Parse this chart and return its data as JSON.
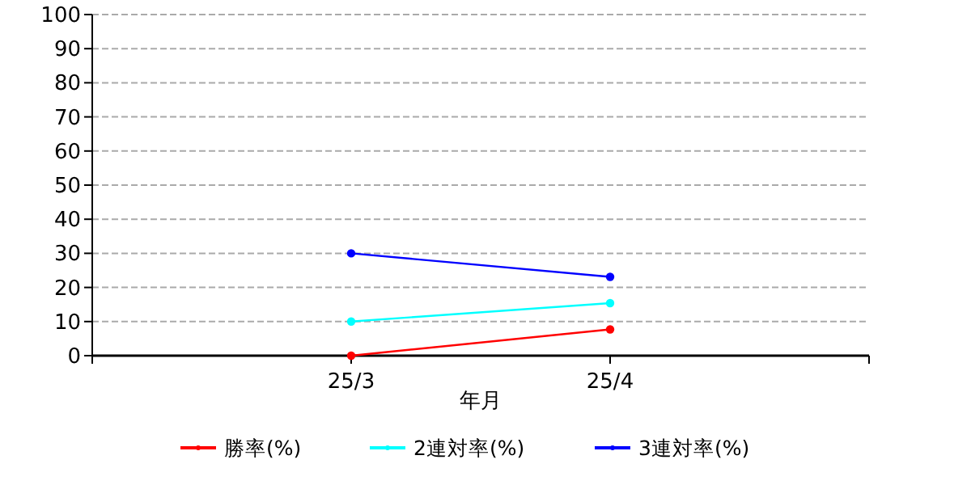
{
  "chart_data": {
    "type": "line",
    "xlabel": "年月",
    "categories": [
      null,
      "25/3",
      "25/4",
      null
    ],
    "series": [
      {
        "name": "勝率(%)",
        "color": "#ff0000",
        "values": [
          null,
          0,
          7.7,
          null
        ]
      },
      {
        "name": "2連対率(%)",
        "color": "#00ffff",
        "values": [
          null,
          10,
          15.4,
          null
        ]
      },
      {
        "name": "3連対率(%)",
        "color": "#0000ff",
        "values": [
          null,
          30,
          23.1,
          null
        ]
      }
    ],
    "ylim": [
      0,
      100
    ],
    "yticks": [
      0,
      10,
      20,
      30,
      40,
      50,
      60,
      70,
      80,
      90,
      100
    ],
    "grid": "y",
    "legend": "bottom",
    "marker": "circle",
    "line_style": "solid"
  }
}
